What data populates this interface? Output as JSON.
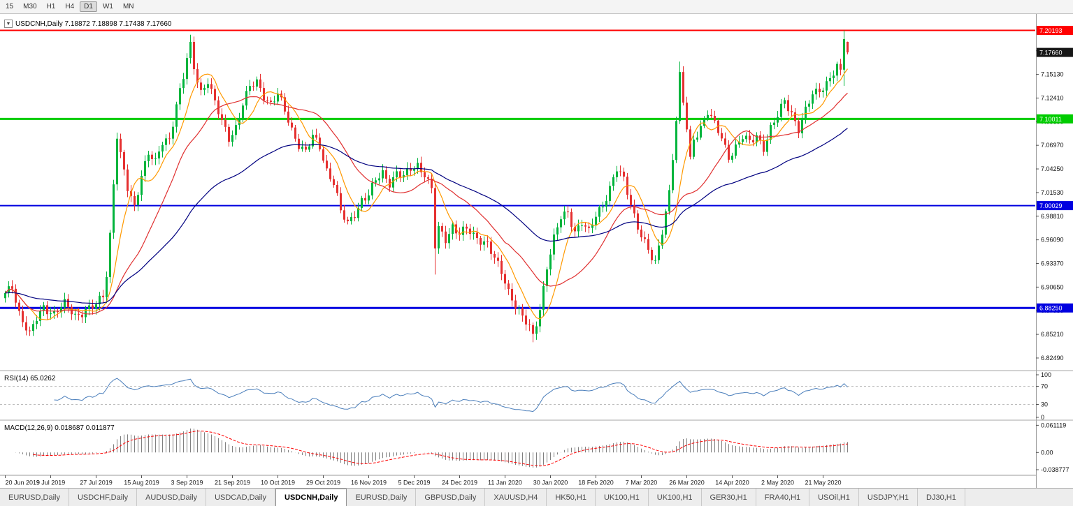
{
  "toolbar": {
    "timeframes": [
      {
        "label": "15",
        "active": false
      },
      {
        "label": "M30",
        "active": false
      },
      {
        "label": "H1",
        "active": false
      },
      {
        "label": "H4",
        "active": false
      },
      {
        "label": "D1",
        "active": true
      },
      {
        "label": "W1",
        "active": false
      },
      {
        "label": "MN",
        "active": false
      }
    ]
  },
  "chart": {
    "title": "USDCNH,Daily 7.18872 7.18898 7.17438 7.17660",
    "ohlc": {
      "open": "7.18872",
      "high": "7.18898",
      "low": "7.17438",
      "close": "7.17660"
    },
    "price_scale": [
      "7.17850",
      "7.15130",
      "7.12410",
      "7.09690",
      "7.06970",
      "7.04250",
      "7.01530",
      "6.98810",
      "6.96090",
      "6.93370",
      "6.90650",
      "6.87930",
      "6.85210",
      "6.82490"
    ],
    "hlines": [
      {
        "price": 7.20193,
        "label": "7.20193",
        "color": "#ff0000",
        "width": 2
      },
      {
        "price": 7.10011,
        "label": "7.10011",
        "color": "#00cc00",
        "width": 3
      },
      {
        "price": 7.00029,
        "label": "7.00029",
        "color": "#0000e0",
        "width": 2
      },
      {
        "price": 6.8825,
        "label": "6.88250",
        "color": "#0000e0",
        "width": 3
      }
    ],
    "current_price": {
      "value": 7.1766,
      "label": "7.17660",
      "badge_color": "#161616"
    }
  },
  "rsi": {
    "label": "RSI(14) 65.0262",
    "current": 65.0262,
    "scale_labels": [
      "100",
      "70",
      "30",
      "0"
    ],
    "levels": [
      70,
      30
    ],
    "line_color": "#4a7ebb"
  },
  "macd": {
    "label": "MACD(12,26,9) 0.018687 0.011877",
    "current": {
      "macd": 0.018687,
      "signal": 0.011877
    },
    "scale_labels": [
      "0.061119",
      "0.00",
      "-0.038777"
    ],
    "histogram_color": "#808080",
    "signal_color": "#ff0000"
  },
  "chart_data": {
    "type": "candlestick",
    "symbol": "USDCNH",
    "timeframe": "Daily",
    "num_candles": 242,
    "x_labels": [
      "20 Jun 2019",
      "9 Jul 2019",
      "27 Jul 2019",
      "15 Aug 2019",
      "3 Sep 2019",
      "21 Sep 2019",
      "10 Oct 2019",
      "29 Oct 2019",
      "16 Nov 2019",
      "5 Dec 2019",
      "24 Dec 2019",
      "11 Jan 2020",
      "30 Jan 2020",
      "18 Feb 2020",
      "7 Mar 2020",
      "26 Mar 2020",
      "14 Apr 2020",
      "2 May 2020",
      "21 May 2020"
    ],
    "candles_per_label": 13,
    "close_waypoints": [
      [
        0,
        6.897
      ],
      [
        2,
        6.908
      ],
      [
        4,
        6.878
      ],
      [
        7,
        6.851
      ],
      [
        9,
        6.869
      ],
      [
        11,
        6.884
      ],
      [
        14,
        6.877
      ],
      [
        17,
        6.886
      ],
      [
        20,
        6.874
      ],
      [
        23,
        6.881
      ],
      [
        26,
        6.884
      ],
      [
        28,
        6.897
      ],
      [
        29,
        6.922
      ],
      [
        30,
        6.968
      ],
      [
        31,
        7.028
      ],
      [
        32,
        7.082
      ],
      [
        33,
        7.058
      ],
      [
        35,
        7.018
      ],
      [
        37,
        6.998
      ],
      [
        39,
        7.038
      ],
      [
        41,
        7.062
      ],
      [
        43,
        7.048
      ],
      [
        45,
        7.072
      ],
      [
        47,
        7.078
      ],
      [
        49,
        7.118
      ],
      [
        51,
        7.148
      ],
      [
        52,
        7.168
      ],
      [
        53,
        7.182
      ],
      [
        54,
        7.158
      ],
      [
        56,
        7.132
      ],
      [
        58,
        7.146
      ],
      [
        60,
        7.118
      ],
      [
        62,
        7.095
      ],
      [
        64,
        7.078
      ],
      [
        66,
        7.092
      ],
      [
        68,
        7.118
      ],
      [
        70,
        7.135
      ],
      [
        72,
        7.142
      ],
      [
        74,
        7.128
      ],
      [
        76,
        7.118
      ],
      [
        78,
        7.128
      ],
      [
        80,
        7.108
      ],
      [
        82,
        7.088
      ],
      [
        84,
        7.072
      ],
      [
        86,
        7.062
      ],
      [
        88,
        7.078
      ],
      [
        90,
        7.068
      ],
      [
        92,
        7.042
      ],
      [
        94,
        7.028
      ],
      [
        96,
        6.992
      ],
      [
        98,
        6.978
      ],
      [
        100,
        6.992
      ],
      [
        102,
        7.008
      ],
      [
        104,
        7.012
      ],
      [
        106,
        7.028
      ],
      [
        108,
        7.038
      ],
      [
        110,
        7.028
      ],
      [
        112,
        7.038
      ],
      [
        114,
        7.032
      ],
      [
        116,
        7.042
      ],
      [
        118,
        7.048
      ],
      [
        120,
        7.038
      ],
      [
        122,
        7.018
      ],
      [
        123,
        6.952
      ],
      [
        124,
        6.972
      ],
      [
        126,
        6.962
      ],
      [
        128,
        6.978
      ],
      [
        130,
        6.968
      ],
      [
        132,
        6.972
      ],
      [
        134,
        6.965
      ],
      [
        136,
        6.962
      ],
      [
        138,
        6.958
      ],
      [
        140,
        6.938
      ],
      [
        142,
        6.922
      ],
      [
        144,
        6.902
      ],
      [
        146,
        6.888
      ],
      [
        148,
        6.872
      ],
      [
        150,
        6.858
      ],
      [
        151,
        6.848
      ],
      [
        153,
        6.882
      ],
      [
        155,
        6.932
      ],
      [
        157,
        6.962
      ],
      [
        159,
        6.985
      ],
      [
        161,
        6.992
      ],
      [
        163,
        6.972
      ],
      [
        165,
        6.982
      ],
      [
        167,
        6.968
      ],
      [
        169,
        6.988
      ],
      [
        171,
        7.002
      ],
      [
        173,
        7.022
      ],
      [
        175,
        7.042
      ],
      [
        177,
        7.028
      ],
      [
        179,
        7.002
      ],
      [
        181,
        6.978
      ],
      [
        183,
        6.958
      ],
      [
        185,
        6.938
      ],
      [
        186,
        6.932
      ],
      [
        188,
        6.972
      ],
      [
        190,
        7.018
      ],
      [
        192,
        7.098
      ],
      [
        193,
        7.148
      ],
      [
        194,
        7.118
      ],
      [
        195,
        7.088
      ],
      [
        196,
        7.052
      ],
      [
        197,
        7.078
      ],
      [
        199,
        7.092
      ],
      [
        201,
        7.108
      ],
      [
        203,
        7.092
      ],
      [
        205,
        7.078
      ],
      [
        207,
        7.058
      ],
      [
        209,
        7.068
      ],
      [
        211,
        7.078
      ],
      [
        213,
        7.072
      ],
      [
        215,
        7.082
      ],
      [
        217,
        7.068
      ],
      [
        219,
        7.088
      ],
      [
        221,
        7.102
      ],
      [
        223,
        7.122
      ],
      [
        225,
        7.108
      ],
      [
        227,
        7.088
      ],
      [
        229,
        7.108
      ],
      [
        231,
        7.128
      ],
      [
        233,
        7.135
      ],
      [
        235,
        7.142
      ],
      [
        237,
        7.152
      ],
      [
        238,
        7.158
      ],
      [
        239,
        7.152
      ],
      [
        240,
        7.192
      ],
      [
        241,
        7.1766
      ]
    ],
    "wick_overrides": {
      "53": {
        "high": 7.197
      },
      "123": {
        "low": 6.921
      },
      "151": {
        "low": 6.843
      },
      "193": {
        "high": 7.166
      },
      "240": {
        "high": 7.2019,
        "low": 7.138
      }
    },
    "last_candle": {
      "open": 7.18872,
      "high": 7.18898,
      "low": 7.17438,
      "close": 7.1766
    },
    "moving_averages": [
      {
        "type": "sma",
        "period": 8,
        "color": "#ff9900"
      },
      {
        "type": "sma",
        "period": 21,
        "color": "#e03030"
      },
      {
        "type": "ema",
        "period": 60,
        "color": "#000080"
      }
    ],
    "colors": {
      "up": "#00b43c",
      "down": "#e53030"
    }
  },
  "tabs": [
    {
      "label": "EURUSD,Daily",
      "active": false
    },
    {
      "label": "USDCHF,Daily",
      "active": false
    },
    {
      "label": "AUDUSD,Daily",
      "active": false
    },
    {
      "label": "USDCAD,Daily",
      "active": false
    },
    {
      "label": "USDCNH,Daily",
      "active": true
    },
    {
      "label": "EURUSD,Daily",
      "active": false
    },
    {
      "label": "GBPUSD,Daily",
      "active": false
    },
    {
      "label": "XAUUSD,H4",
      "active": false
    },
    {
      "label": "HK50,H1",
      "active": false
    },
    {
      "label": "UK100,H1",
      "active": false
    },
    {
      "label": "UK100,H1",
      "active": false
    },
    {
      "label": "GER30,H1",
      "active": false
    },
    {
      "label": "FRA40,H1",
      "active": false
    },
    {
      "label": "USOil,H1",
      "active": false
    },
    {
      "label": "USDJPY,H1",
      "active": false
    },
    {
      "label": "DJ30,H1",
      "active": false
    }
  ]
}
